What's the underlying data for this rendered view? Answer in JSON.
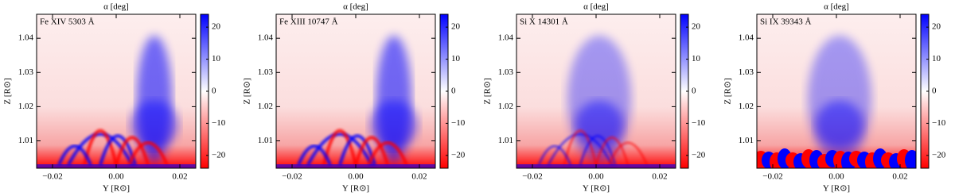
{
  "chart_data": [
    {
      "type": "heatmap",
      "title": "α [deg]",
      "label": "Fe XIV 5303 Å",
      "xlabel": "Y [R⊙]",
      "ylabel": "Z [R⊙]",
      "xlim": [
        -0.025,
        0.025
      ],
      "ylim": [
        1.002,
        1.047
      ],
      "xticks": [
        {
          "value": -0.02,
          "label": "−0.02"
        },
        {
          "value": 0,
          "label": "0.00"
        },
        {
          "value": 0.02,
          "label": "0.02"
        }
      ],
      "yticks": [
        1.01,
        1.02,
        1.03,
        1.04
      ],
      "clim": [
        -24,
        24
      ],
      "cticks": [
        20,
        10,
        0,
        {
          "value": -10,
          "label": "−10"
        },
        {
          "value": -20,
          "label": "−20"
        }
      ],
      "colormap": [
        "#ff0000",
        "#ffffff",
        "#0000ff"
      ]
    },
    {
      "type": "heatmap",
      "title": "α [deg]",
      "label": "Fe XIII 10747 Å",
      "xlabel": "Y [R⊙]",
      "ylabel": "Z [R⊙]",
      "xlim": [
        -0.025,
        0.025
      ],
      "ylim": [
        1.002,
        1.047
      ],
      "xticks": [
        {
          "value": -0.02,
          "label": "−0.02"
        },
        {
          "value": 0,
          "label": "0.00"
        },
        {
          "value": 0.02,
          "label": "0.02"
        }
      ],
      "yticks": [
        1.01,
        1.02,
        1.03,
        1.04
      ],
      "clim": [
        -24,
        24
      ],
      "cticks": [
        20,
        10,
        0,
        {
          "value": -10,
          "label": "−10"
        },
        {
          "value": -20,
          "label": "−20"
        }
      ],
      "colormap": [
        "#ff0000",
        "#ffffff",
        "#0000ff"
      ]
    },
    {
      "type": "heatmap",
      "title": "α [deg]",
      "label": "Si X 14301 Å",
      "xlabel": "Y [R⊙]",
      "ylabel": "Z [R⊙]",
      "xlim": [
        -0.025,
        0.025
      ],
      "ylim": [
        1.002,
        1.047
      ],
      "xticks": [
        {
          "value": -0.02,
          "label": "−0.02"
        },
        {
          "value": 0,
          "label": "0.00"
        },
        {
          "value": 0.02,
          "label": "0.02"
        }
      ],
      "yticks": [
        1.01,
        1.02,
        1.03,
        1.04
      ],
      "clim": [
        -24,
        24
      ],
      "cticks": [
        20,
        10,
        0,
        {
          "value": -10,
          "label": "−10"
        },
        {
          "value": -20,
          "label": "−20"
        }
      ],
      "colormap": [
        "#ff0000",
        "#ffffff",
        "#0000ff"
      ]
    },
    {
      "type": "heatmap",
      "title": "α [deg]",
      "label": "Si IX 39343 Å",
      "xlabel": "Y [R⊙]",
      "ylabel": "Z [R⊙]",
      "xlim": [
        -0.025,
        0.025
      ],
      "ylim": [
        1.002,
        1.047
      ],
      "xticks": [
        {
          "value": -0.02,
          "label": "−0.02"
        },
        {
          "value": 0,
          "label": "0.00"
        },
        {
          "value": 0.02,
          "label": "0.02"
        }
      ],
      "yticks": [
        1.01,
        1.02,
        1.03,
        1.04
      ],
      "clim": [
        -24,
        24
      ],
      "cticks": [
        20,
        10,
        0,
        {
          "value": -10,
          "label": "−10"
        },
        {
          "value": -20,
          "label": "−20"
        }
      ],
      "colormap": [
        "#ff0000",
        "#ffffff",
        "#0000ff"
      ]
    }
  ]
}
